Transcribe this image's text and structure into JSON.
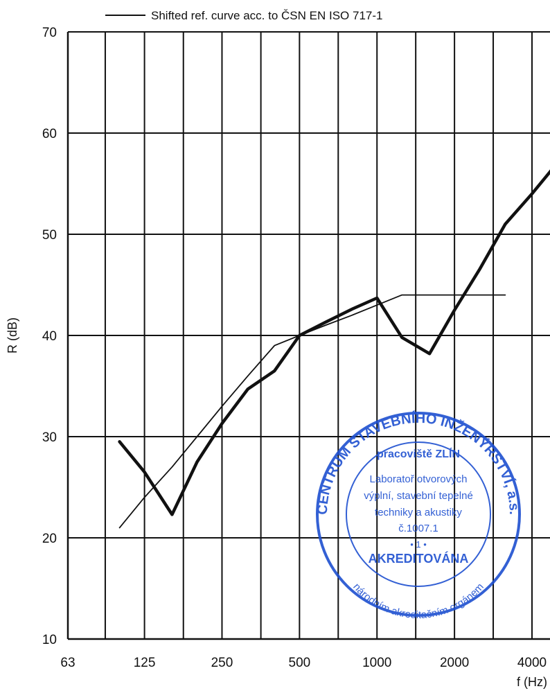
{
  "chart_data": {
    "type": "line",
    "xscale": "log",
    "xlabel": "f (Hz)",
    "ylabel": "R (dB)",
    "ylim": [
      10,
      70
    ],
    "xlim": [
      63,
      5000
    ],
    "yticks": [
      10,
      20,
      30,
      40,
      50,
      60,
      70
    ],
    "xticks": [
      63,
      125,
      250,
      500,
      1000,
      2000,
      4000
    ],
    "grid": true,
    "legend_position": "top",
    "series": [
      {
        "name": "",
        "x": [
          100,
          125,
          160,
          200,
          250,
          315,
          400,
          500,
          630,
          800,
          1000,
          1250,
          1600,
          2000,
          2500,
          3150,
          4000,
          5000
        ],
        "y": [
          29.5,
          26.5,
          22.3,
          27.5,
          31.3,
          34.7,
          36.5,
          40.0,
          41.3,
          42.6,
          43.7,
          39.8,
          38.2,
          42.5,
          46.5,
          51.0,
          54.0,
          57.0
        ]
      },
      {
        "name": "Shifted ref. curve acc. to ČSN EN ISO 717-1",
        "x": [
          100,
          125,
          160,
          200,
          250,
          315,
          400,
          500,
          630,
          800,
          1000,
          1250,
          1600,
          2000,
          2500,
          3150
        ],
        "y": [
          21,
          24,
          27,
          30,
          33,
          36,
          39,
          40,
          41,
          42,
          43,
          44,
          44,
          44,
          44,
          44
        ]
      }
    ]
  },
  "stamp": {
    "ring_top": "CENTRUM STAVEBNÍHO INŽENÝRSTVÍ, a.s.",
    "ring_bottom": "národním akreditačním orgánem",
    "line1": "pracoviště ZLÍN",
    "line2": "Laboratoř otvorových",
    "line3": "výplní, stavební tepelné",
    "line4": "techniky a akustiky",
    "line5": "č.1007.1",
    "line6": "• 1 •",
    "line7": "AKREDITOVÁNA"
  }
}
